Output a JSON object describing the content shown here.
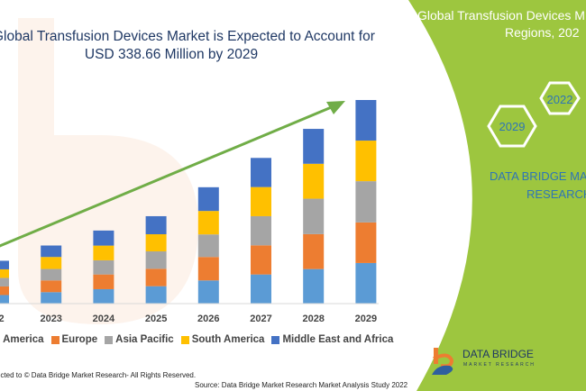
{
  "title": {
    "line1": "Global Transfusion Devices Market is Expected to Account for",
    "line2": "USD 338.66 Million by 2029"
  },
  "side_panel": {
    "title_line1": "Global Transfusion Devices M",
    "title_line2": "Regions, 202",
    "hex_2022": "2022",
    "hex_2029": "2029",
    "brand_line1": "DATA BRIDGE MA",
    "brand_line2": "RESEARCH",
    "color": "#9dc63f"
  },
  "watermark": "DATA BRIDGE MARKET RESEARCH",
  "logo": {
    "name": "DATA BRIDGE",
    "sub": "MARKET RESEARCH"
  },
  "footer": {
    "copyright": "ected to © Data Bridge Market Research- All Rights Reserved.",
    "source": "Source: Data Bridge Market Research Market Analysis Study 2022"
  },
  "chart_data": {
    "type": "bar",
    "stacked": true,
    "title": "",
    "xlabel": "",
    "ylabel": "",
    "categories": [
      "22",
      "2023",
      "2024",
      "2025",
      "2026",
      "2027",
      "2028",
      "2029"
    ],
    "series": [
      {
        "name": "orth America",
        "color": "#5b9bd5",
        "values": [
          9.5,
          12.7,
          16,
          19.3,
          25.7,
          32.3,
          38.3,
          45
        ]
      },
      {
        "name": "Europe",
        "color": "#ed7d31",
        "values": [
          9.5,
          13,
          16.3,
          19.3,
          26,
          32.3,
          38.7,
          45
        ]
      },
      {
        "name": "Asia Pacific",
        "color": "#a5a5a5",
        "values": [
          9.5,
          12.7,
          15.7,
          19.3,
          25,
          32.3,
          39.3,
          45.7
        ]
      },
      {
        "name": "South America",
        "color": "#ffc000",
        "values": [
          9.5,
          13.3,
          16.3,
          19,
          26,
          32.3,
          38.7,
          45
        ]
      },
      {
        "name": "Middle East and Africa",
        "color": "#4472c4",
        "values": [
          9.5,
          12.7,
          16.7,
          20,
          26.3,
          32.3,
          38.7,
          45
        ]
      }
    ],
    "trend_arrow": {
      "color": "#70ad47",
      "direction": "up-right"
    },
    "legend": "bottom",
    "grid": false,
    "y_axis_shown": false
  }
}
